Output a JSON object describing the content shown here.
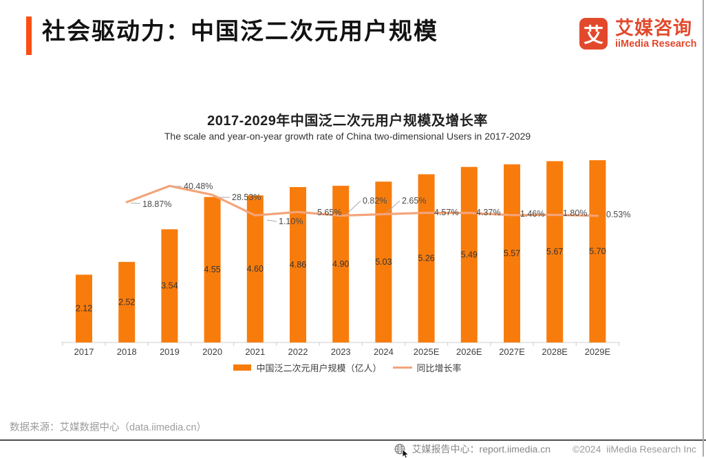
{
  "header": {
    "title": "社会驱动力：中国泛二次元用户规模",
    "logo": {
      "glyph": "艾",
      "name_cn": "艾媒咨询",
      "name_en": "iiMedia Research"
    }
  },
  "colors": {
    "accent_bar": "#fb4e14",
    "bar_series": "#f87c0c",
    "line_series": "#f3a479",
    "logo_red": "#e2492c"
  },
  "chart_data": {
    "type": "bar+line",
    "title": "2017-2029年中国泛二次元用户规模及增长率",
    "subtitle": "The scale and year-on-year growth rate of China two-dimensional Users in 2017-2029",
    "categories": [
      "2017",
      "2018",
      "2019",
      "2020",
      "2021",
      "2022",
      "2023",
      "2024",
      "2025E",
      "2026E",
      "2027E",
      "2028E",
      "2029E"
    ],
    "series": [
      {
        "name": "中国泛二次元用户规模（亿人）",
        "type": "bar",
        "color": "#f87c0c",
        "unit": "亿人",
        "values": [
          2.12,
          2.52,
          3.54,
          4.55,
          4.6,
          4.86,
          4.9,
          5.03,
          5.26,
          5.49,
          5.57,
          5.67,
          5.7
        ],
        "labels": [
          "2.12",
          "2.52",
          "3.54",
          "4.55",
          "4.60",
          "4.86",
          "4.90",
          "5.03",
          "5.26",
          "5.49",
          "5.57",
          "5.67",
          "5.70"
        ]
      },
      {
        "name": "同比增长率",
        "type": "line",
        "color": "#f3a479",
        "unit": "%",
        "values": [
          null,
          18.87,
          40.48,
          28.53,
          1.1,
          5.65,
          0.82,
          2.65,
          4.57,
          4.37,
          1.46,
          1.8,
          0.53
        ],
        "labels": [
          null,
          "18.87%",
          "40.48%",
          "28.53%",
          "1.10%",
          "5.65%",
          "0.82%",
          "2.65%",
          "4.57%",
          "4.37%",
          "1.46%",
          "1.80%",
          "0.53%"
        ]
      }
    ],
    "legend_position": "bottom",
    "grid": false,
    "y_axis": "hidden",
    "secondary_y_axis": "hidden"
  },
  "legend": [
    {
      "label": "中国泛二次元用户规模（亿人）"
    },
    {
      "label": "同比增长率"
    }
  ],
  "footer": {
    "source": "数据来源：艾媒数据中心（data.iimedia.cn）"
  },
  "bottom_bar": {
    "icon": "globe-icon",
    "report_center": "艾媒报告中心：report.iimedia.cn",
    "copyright": "©2024  iiMedia Research Inc"
  }
}
